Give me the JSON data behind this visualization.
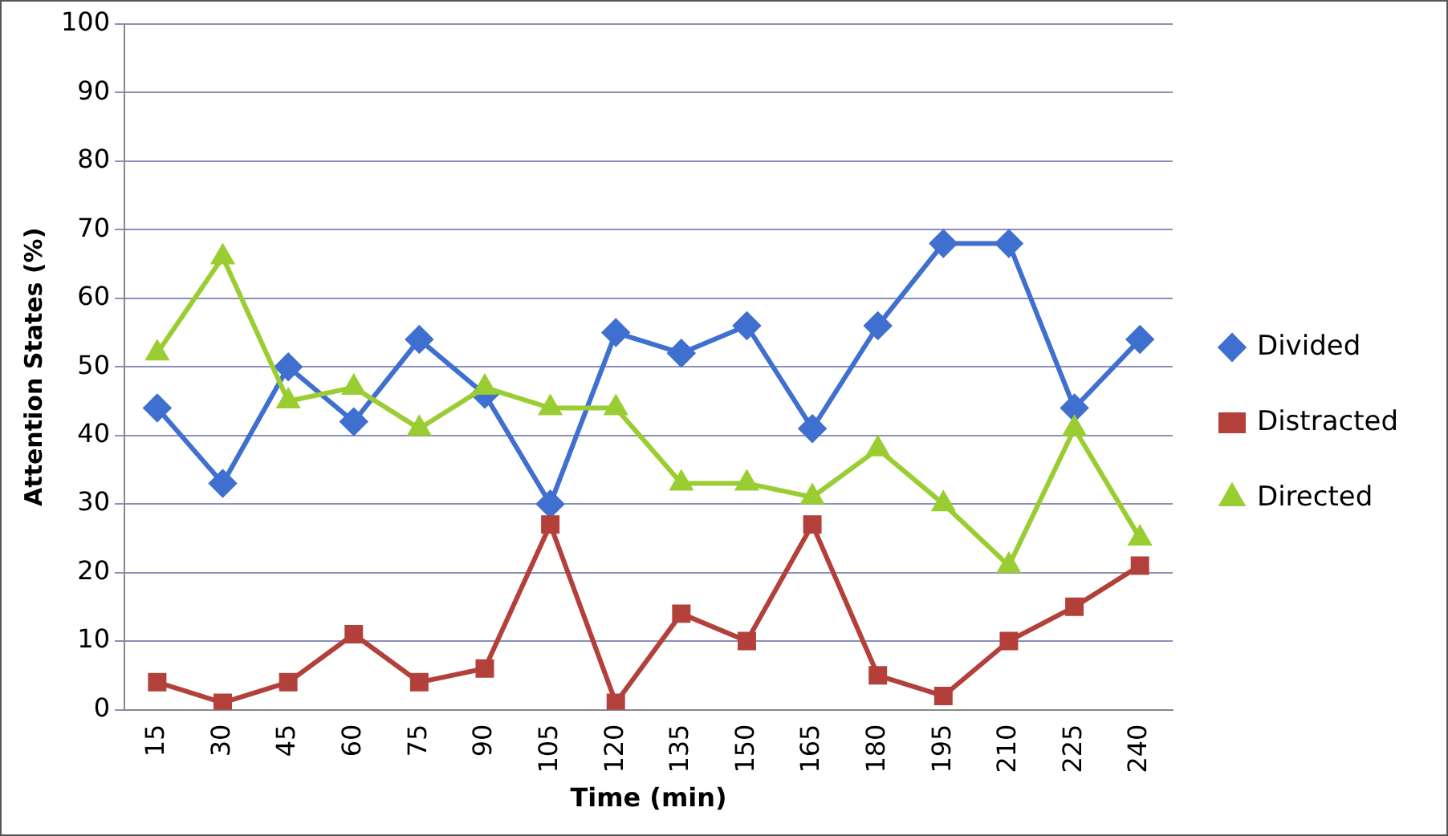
{
  "chart_data": {
    "type": "line",
    "xlabel": "Time (min)",
    "ylabel": "Attention States (%)",
    "categories": [
      "15",
      "30",
      "45",
      "60",
      "75",
      "90",
      "105",
      "120",
      "135",
      "150",
      "165",
      "180",
      "195",
      "210",
      "225",
      "240"
    ],
    "series": [
      {
        "name": "Divided",
        "color": "#3f6fcf",
        "marker": "diamond",
        "values": [
          44,
          33,
          50,
          42,
          54,
          46,
          30,
          55,
          52,
          56,
          41,
          56,
          68,
          68,
          44,
          54
        ]
      },
      {
        "name": "Distracted",
        "color": "#b3403a",
        "marker": "square",
        "values": [
          4,
          1,
          4,
          11,
          4,
          6,
          27,
          1,
          14,
          10,
          27,
          5,
          2,
          10,
          15,
          21
        ]
      },
      {
        "name": "Directed",
        "color": "#9acd32",
        "marker": "triangle",
        "values": [
          52,
          66,
          45,
          47,
          41,
          47,
          44,
          44,
          33,
          33,
          31,
          38,
          30,
          21,
          41,
          25
        ]
      }
    ],
    "ylim": [
      0,
      100
    ],
    "yticks": [
      0,
      10,
      20,
      30,
      40,
      50,
      60,
      70,
      80,
      90,
      100
    ],
    "grid": "y",
    "legend": "right"
  }
}
